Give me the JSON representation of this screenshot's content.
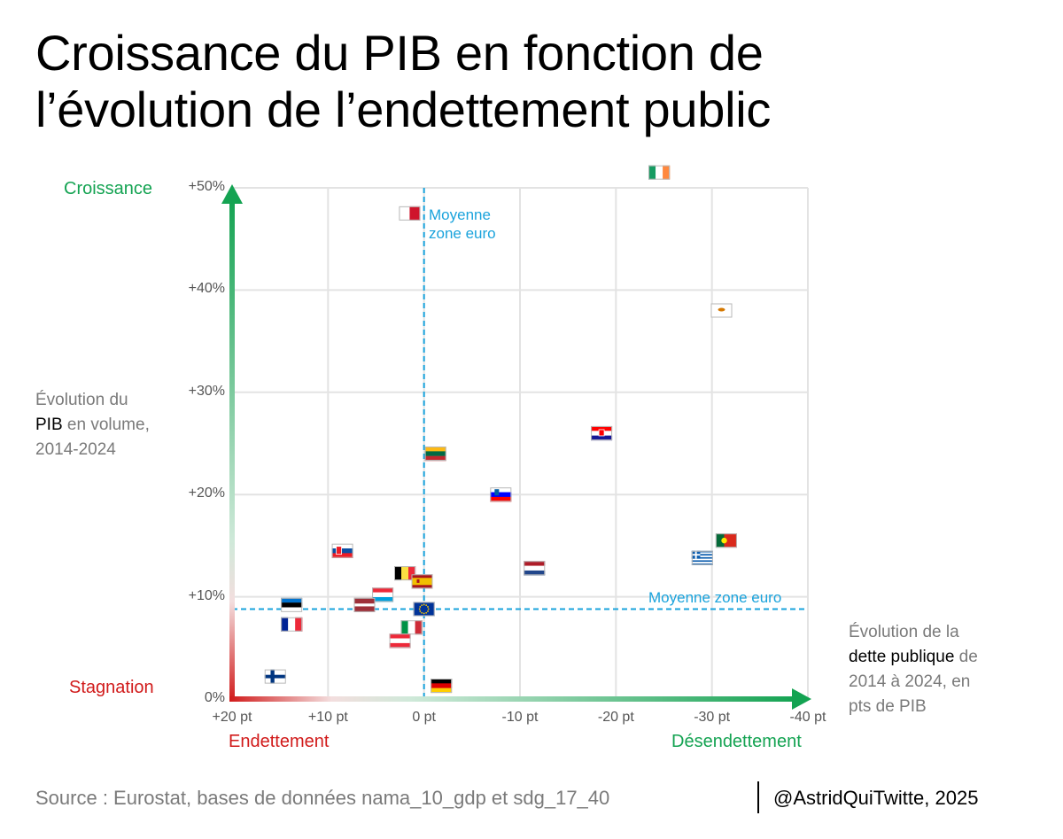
{
  "title": {
    "line1": "Croissance du PIB en fonction de",
    "line2": "l’évolution de l’endettement public"
  },
  "axis_words": {
    "top": "Croissance",
    "bottom": "Stagnation",
    "left": "Endettement",
    "right": "Désendettement"
  },
  "y_note": {
    "pre": "Évolution du",
    "bold": "PIB",
    "post": " en volume,",
    "line3": "2014-2024"
  },
  "x_note": {
    "line1": "Évolution de la",
    "bold": "dette publique",
    "post": " de",
    "line3": "2014 à 2024, en",
    "line4": "pts de PIB"
  },
  "mean_v_label": {
    "line1": "Moyenne",
    "line2": "zone euro"
  },
  "mean_h_label": "Moyenne zone euro",
  "source": "Source : Eurostat, bases de données nama_10_gdp et sdg_17_40",
  "credit": "@AstridQuiTwitte, 2025",
  "colors": {
    "grid": "#e3e3e3",
    "mean": "#1aa3dc",
    "green": "#14a352",
    "red": "#d11a1a"
  },
  "chart_data": {
    "type": "scatter",
    "x_ticks": [
      "+20 pt",
      "+10 pt",
      "0 pt",
      "-10 pt",
      "-20 pt",
      "-30 pt",
      "-40 pt"
    ],
    "y_ticks": [
      "0%",
      "+10%",
      "+20%",
      "+30%",
      "+40%",
      "+50%"
    ],
    "xlim": [
      20,
      -40
    ],
    "ylim": [
      0,
      50
    ],
    "mean": {
      "x": 0,
      "y": 8.8
    },
    "points": [
      {
        "flag": "ie",
        "x": -24.5,
        "y": 51.5
      },
      {
        "flag": "mt",
        "x": 1.5,
        "y": 47.5
      },
      {
        "flag": "cy",
        "x": -31,
        "y": 38
      },
      {
        "flag": "hr",
        "x": -18.5,
        "y": 26
      },
      {
        "flag": "lt",
        "x": -1.2,
        "y": 24
      },
      {
        "flag": "si",
        "x": -8,
        "y": 20
      },
      {
        "flag": "pt",
        "x": -31.5,
        "y": 15.5
      },
      {
        "flag": "sk",
        "x": 8.5,
        "y": 14.5
      },
      {
        "flag": "gr",
        "x": -29,
        "y": 13.8
      },
      {
        "flag": "nl",
        "x": -11.5,
        "y": 12.8
      },
      {
        "flag": "be",
        "x": 2,
        "y": 12.3
      },
      {
        "flag": "es",
        "x": 0.2,
        "y": 11.5
      },
      {
        "flag": "lu",
        "x": 4.3,
        "y": 10.2
      },
      {
        "flag": "lv",
        "x": 6.2,
        "y": 9.2
      },
      {
        "flag": "ee",
        "x": 13.8,
        "y": 9.2
      },
      {
        "flag": "eu",
        "x": 0,
        "y": 8.8
      },
      {
        "flag": "fr",
        "x": 13.8,
        "y": 7.3
      },
      {
        "flag": "it",
        "x": 1.3,
        "y": 7.0
      },
      {
        "flag": "at",
        "x": 2.5,
        "y": 5.7
      },
      {
        "flag": "fi",
        "x": 15.5,
        "y": 2.2
      },
      {
        "flag": "de",
        "x": -1.8,
        "y": 1.3
      }
    ]
  }
}
